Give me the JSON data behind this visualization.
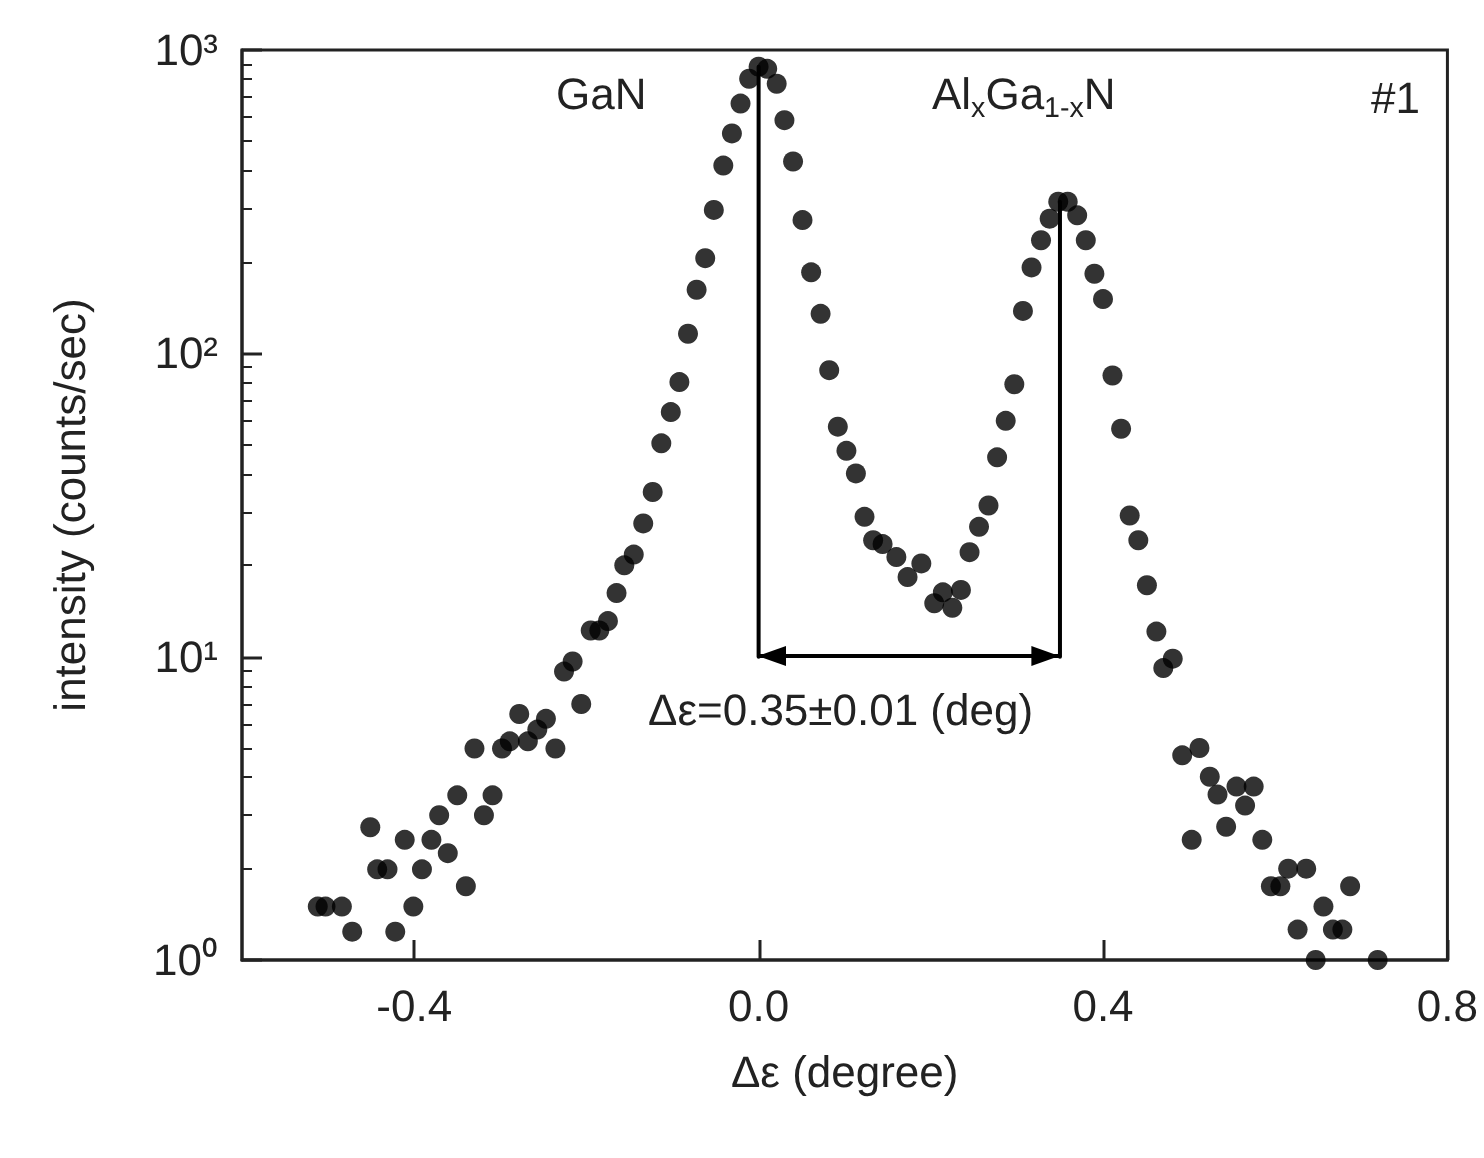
{
  "chart_data": {
    "type": "scatter",
    "xlabel": "Δε (degree)",
    "ylabel": "intensity (counts/sec)",
    "log": "y",
    "xlim": [
      -0.6,
      0.8
    ],
    "xticks": [
      {
        "value": -0.4,
        "label": "-0.4"
      },
      {
        "value": 0,
        "label": "0.0"
      },
      {
        "value": 0.4,
        "label": "0.4"
      },
      {
        "value": 0.8,
        "label": "0.8"
      }
    ],
    "ylim": [
      1,
      1000
    ],
    "yticks": [
      {
        "value": 1,
        "label": "10⁰"
      },
      {
        "value": 10,
        "label": "10¹"
      },
      {
        "value": 100,
        "label": "10²"
      },
      {
        "value": 1000,
        "label": "10³"
      }
    ],
    "grid": false,
    "marker": "circle",
    "series": [
      {
        "color": "#000000",
        "x": [
          -0.512,
          -0.503,
          -0.484,
          -0.472,
          -0.451,
          -0.443,
          -0.431,
          -0.422,
          -0.411,
          -0.401,
          -0.391,
          -0.38,
          -0.371,
          -0.361,
          -0.35,
          -0.34,
          -0.33,
          -0.319,
          -0.309,
          -0.298,
          -0.289,
          -0.278,
          -0.268,
          -0.257,
          -0.247,
          -0.236,
          -0.226,
          -0.216,
          -0.206,
          -0.195,
          -0.185,
          -0.175,
          -0.165,
          -0.156,
          -0.145,
          -0.134,
          -0.123,
          -0.113,
          -0.102,
          -0.092,
          -0.082,
          -0.072,
          -0.062,
          -0.052,
          -0.041,
          -0.031,
          -0.021,
          -0.011,
          0.0,
          0.01,
          0.021,
          0.03,
          0.04,
          0.051,
          0.061,
          0.072,
          0.082,
          0.092,
          0.102,
          0.113,
          0.123,
          0.133,
          0.144,
          0.16,
          0.173,
          0.189,
          0.204,
          0.214,
          0.225,
          0.235,
          0.245,
          0.256,
          0.267,
          0.277,
          0.287,
          0.297,
          0.307,
          0.317,
          0.328,
          0.338,
          0.348,
          0.359,
          0.37,
          0.38,
          0.39,
          0.4,
          0.411,
          0.421,
          0.431,
          0.441,
          0.451,
          0.462,
          0.47,
          0.481,
          0.492,
          0.503,
          0.512,
          0.524,
          0.533,
          0.543,
          0.555,
          0.565,
          0.575,
          0.585,
          0.595,
          0.606,
          0.615,
          0.626,
          0.636,
          0.647,
          0.656,
          0.667,
          0.678,
          0.687,
          0.719
        ],
        "values": [
          1.5,
          1.5,
          1.5,
          1.24,
          2.74,
          1.99,
          1.99,
          1.24,
          2.49,
          1.5,
          1.99,
          2.49,
          3.0,
          2.25,
          3.49,
          1.75,
          4.98,
          3.0,
          3.49,
          4.98,
          5.26,
          6.47,
          5.26,
          5.75,
          6.24,
          4.98,
          8.93,
          9.64,
          6.98,
          12.2,
          12.2,
          13.1,
          16.2,
          20.0,
          21.7,
          27.5,
          34.9,
          50.5,
          64.0,
          80.4,
          116,
          162,
          206,
          297,
          416,
          531,
          666,
          804,
          881,
          867,
          774,
          587,
          429,
          275,
          185,
          135,
          88,
          57.3,
          47.7,
          40.2,
          28.9,
          24.2,
          23.5,
          21.3,
          18.3,
          20.3,
          15.0,
          16.3,
          14.5,
          16.6,
          22.1,
          26.8,
          31.5,
          45.4,
          59.9,
          79.1,
          138,
          192,
          236,
          278,
          316,
          316,
          285,
          236,
          183,
          151,
          84.5,
          56.4,
          29.2,
          24.2,
          17.2,
          12.1,
          9.17,
          9.85,
          4.73,
          2.49,
          5.0,
          4.02,
          3.51,
          2.75,
          3.73,
          3.23,
          3.73,
          2.49,
          1.75,
          1.75,
          2.0,
          1.26,
          2.0,
          1.0,
          1.5,
          1.26,
          1.26,
          1.75,
          1.0
        ]
      },
      {
        "type": "line",
        "color": "#000000",
        "marker": "none",
        "line_style": "solid",
        "x": [
          0,
          0
        ],
        "values": [
          10,
          881
        ]
      },
      {
        "type": "line",
        "color": "#000000",
        "marker": "none",
        "line_style": "solid",
        "x": [
          0.35,
          0.35
        ],
        "values": [
          10,
          316
        ]
      }
    ],
    "annotations": [
      "GaN",
      "Al$_{x}$Ga$_{1-x}$N",
      "Δε=0.35±0.01 (deg)",
      "#1"
    ]
  }
}
